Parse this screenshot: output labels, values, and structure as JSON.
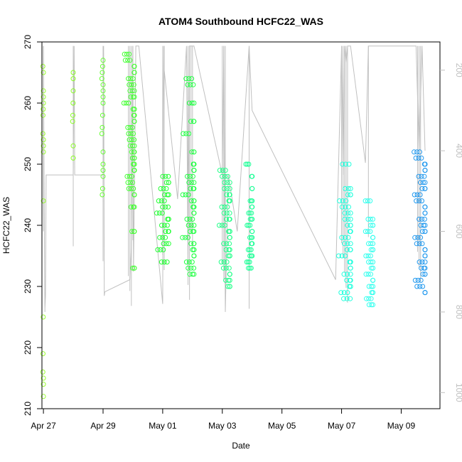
{
  "chart_data": {
    "type": "scatter",
    "title": "ATOM4 Southbound HCFC22_WAS",
    "xlabel": "Date",
    "ylabel": "HCFC22_WAS",
    "xlim": [
      -0.05,
      13.3
    ],
    "ylim": [
      210,
      270
    ],
    "x_ticks": [
      {
        "v": 0,
        "label": "Apr 27"
      },
      {
        "v": 2,
        "label": "Apr 29"
      },
      {
        "v": 4,
        "label": "May 01"
      },
      {
        "v": 6,
        "label": "May 03"
      },
      {
        "v": 8,
        "label": "May 05"
      },
      {
        "v": 10,
        "label": "May 07"
      },
      {
        "v": 12,
        "label": "May 09"
      }
    ],
    "y_ticks": [
      210,
      220,
      230,
      240,
      250,
      260,
      270
    ],
    "y2_ticks": [
      200,
      400,
      600,
      800,
      1000
    ],
    "y2lim": [
      130,
      1040
    ],
    "y2_inverted": true,
    "grid": false,
    "series": [
      {
        "color": "#99ff33",
        "x": [
          0.0,
          0.0
        ],
        "y": [
          212,
          266
        ],
        "jitter": 0.02,
        "points": [
          266,
          265,
          262,
          261,
          260,
          259,
          258,
          255,
          254,
          253,
          252,
          244,
          225,
          219,
          216,
          215,
          214,
          212
        ]
      },
      {
        "color": "#88ff22",
        "x": [
          1.0,
          1.0
        ],
        "y": [
          251,
          265
        ],
        "jitter": 0.02,
        "points": [
          265,
          264,
          262,
          260,
          258,
          257,
          253,
          251
        ]
      },
      {
        "color": "#66ff33",
        "x": [
          2.0,
          2.0
        ],
        "y": [
          245,
          267
        ],
        "jitter": 0.04,
        "points": [
          267,
          266,
          265,
          264,
          263,
          262,
          261,
          260,
          258,
          256,
          255,
          252,
          250,
          249,
          248,
          246,
          245
        ]
      },
      {
        "color": "#44ff33",
        "x": [
          2.8,
          3.05
        ],
        "y": [
          233,
          268
        ],
        "jitter": 0.12,
        "points": [
          268,
          267,
          266,
          265,
          264,
          263,
          262,
          261,
          260,
          259,
          258,
          257,
          256,
          255,
          254,
          253,
          252,
          251,
          250,
          249,
          248,
          247,
          246,
          245,
          243,
          239,
          233
        ]
      },
      {
        "color": "#22ff33",
        "x": [
          3.9,
          4.2
        ],
        "y": [
          234,
          248
        ],
        "jitter": 0.1,
        "points": [
          248,
          247,
          246,
          245,
          244,
          243,
          242,
          241,
          240,
          239,
          238,
          237,
          236,
          234
        ]
      },
      {
        "color": "#22ff44",
        "x": [
          4.75,
          5.05
        ],
        "y": [
          232,
          264
        ],
        "jitter": 0.1,
        "points": [
          264,
          263,
          260,
          257,
          255,
          252,
          250,
          249,
          248,
          247,
          246,
          245,
          244,
          243,
          242,
          241,
          240,
          239,
          238,
          237,
          236,
          235,
          234,
          233,
          232
        ]
      },
      {
        "color": "#22ff88",
        "x": [
          5.95,
          6.25
        ],
        "y": [
          230,
          249
        ],
        "jitter": 0.1,
        "points": [
          249,
          248,
          247,
          246,
          245,
          244,
          243,
          242,
          241,
          240,
          239,
          238,
          237,
          236,
          235,
          234,
          233,
          232,
          231,
          230
        ]
      },
      {
        "color": "#22ff99",
        "x": [
          6.85,
          7.0
        ],
        "y": [
          233,
          250
        ],
        "jitter": 0.06,
        "points": [
          250,
          248,
          246,
          244,
          243,
          242,
          241,
          240,
          239,
          238,
          237,
          236,
          235,
          234,
          233
        ]
      },
      {
        "color": "#22ffdd",
        "x": [
          9.95,
          10.3
        ],
        "y": [
          228,
          250
        ],
        "jitter": 0.12,
        "points": [
          250,
          246,
          245,
          244,
          243,
          242,
          241,
          240,
          239,
          238,
          237,
          236,
          235,
          234,
          233,
          232,
          231,
          230,
          229,
          228
        ]
      },
      {
        "color": "#33ffee",
        "x": [
          10.8,
          11.05
        ],
        "y": [
          227,
          244
        ],
        "jitter": 0.08,
        "points": [
          244,
          241,
          240,
          239,
          238,
          237,
          236,
          235,
          234,
          233,
          232,
          231,
          230,
          229,
          228,
          227
        ]
      },
      {
        "color": "#2299ee",
        "x": [
          12.5,
          12.8
        ],
        "y": [
          229,
          252
        ],
        "jitter": 0.1,
        "points": [
          252,
          251,
          250,
          249,
          248,
          247,
          246,
          245,
          244,
          243,
          242,
          241,
          240,
          239,
          238,
          237,
          236,
          235,
          234,
          233,
          232,
          231,
          230,
          229
        ]
      }
    ],
    "altitude_series": {
      "color": "#c0c0c0",
      "x": [
        0.0,
        0.02,
        0.05,
        0.05,
        0.07,
        0.09,
        1.0,
        1.03,
        1.05,
        2.0,
        2.02,
        2.04,
        2.06,
        2.9,
        2.95,
        3.0,
        3.02,
        3.05,
        3.1,
        3.2,
        4.0,
        4.02,
        4.04,
        4.05,
        4.5,
        4.8,
        4.85,
        4.9,
        5.0,
        5.05,
        6.0,
        6.05,
        6.1,
        6.2,
        6.5,
        6.9,
        7.0,
        9.8,
        10.0,
        10.05,
        10.1,
        10.15,
        10.2,
        10.3,
        10.8,
        10.9,
        11.0,
        12.5,
        12.6,
        12.7,
        12.8
      ],
      "alt": [
        140,
        460,
        800,
        790,
        760,
        460,
        460,
        140,
        460,
        460,
        140,
        760,
        750,
        720,
        640,
        140,
        700,
        520,
        140,
        140,
        780,
        300,
        140,
        200,
        520,
        140,
        700,
        140,
        140,
        140,
        460,
        140,
        800,
        460,
        600,
        140,
        300,
        720,
        140,
        460,
        140,
        180,
        140,
        140,
        430,
        140,
        140,
        140,
        400,
        140,
        400
      ]
    }
  }
}
